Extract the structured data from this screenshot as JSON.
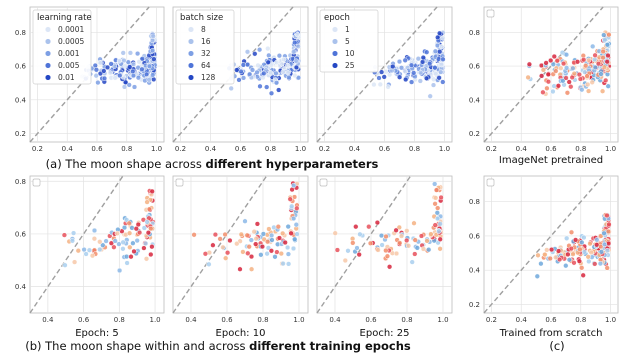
{
  "colors": {
    "blues": [
      "#dce6f6",
      "#aac2ec",
      "#7d9fe4",
      "#4f74d8",
      "#2447c4"
    ],
    "warm": [
      "#d7263d",
      "#e8505b",
      "#f28e6b",
      "#f4b183",
      "#f7c8a8",
      "#6fa8dc",
      "#a9cfee",
      "#8cb8e8"
    ],
    "diagonal": "#a0a0a0",
    "grid": "#e2e2e2"
  },
  "chart_data": [
    {
      "id": "p1",
      "type": "scatter",
      "xlim": [
        0.15,
        1.05
      ],
      "ylim": [
        0.15,
        0.95
      ],
      "xticks": [
        "0.2",
        "0.4",
        "0.6",
        "0.8",
        "1.0"
      ],
      "yticks": [
        "0.2",
        "0.4",
        "0.6",
        "0.8"
      ],
      "legend": {
        "title": "learning rate",
        "entries": [
          "0.0001",
          "0.0005",
          "0.001",
          "0.005",
          "0.01"
        ],
        "position": "top-left"
      }
    },
    {
      "id": "p2",
      "type": "scatter",
      "xlim": [
        0.15,
        1.05
      ],
      "ylim": [
        0.15,
        0.95
      ],
      "xticks": [
        "0.2",
        "0.4",
        "0.6",
        "0.8",
        "1.0"
      ],
      "yticks": [],
      "legend": {
        "title": "batch size",
        "entries": [
          "8",
          "16",
          "32",
          "64",
          "128"
        ],
        "position": "top-left"
      }
    },
    {
      "id": "p3",
      "type": "scatter",
      "xlim": [
        0.15,
        1.05
      ],
      "ylim": [
        0.15,
        0.95
      ],
      "xticks": [
        "0.2",
        "0.4",
        "0.6",
        "0.8",
        "1.0"
      ],
      "yticks": [],
      "legend": {
        "title": "epoch",
        "entries": [
          "1",
          "5",
          "10",
          "25"
        ],
        "position": "top-left"
      }
    },
    {
      "id": "p4",
      "type": "scatter",
      "xlim": [
        0.15,
        1.05
      ],
      "ylim": [
        0.15,
        0.95
      ],
      "xticks": [
        "0.2",
        "0.4",
        "0.6",
        "0.8",
        "1.0"
      ],
      "yticks": [
        "0.2",
        "0.4",
        "0.6",
        "0.8"
      ],
      "xlabel": "ImageNet pretrained"
    },
    {
      "id": "p5",
      "type": "scatter",
      "xlim": [
        0.3,
        1.05
      ],
      "ylim": [
        0.3,
        0.82
      ],
      "xticks": [
        "0.4",
        "0.6",
        "0.8",
        "1.0"
      ],
      "yticks": [
        "0.4",
        "0.6",
        "0.8"
      ],
      "xlabel": "Epoch: 5"
    },
    {
      "id": "p6",
      "type": "scatter",
      "xlim": [
        0.3,
        1.05
      ],
      "ylim": [
        0.3,
        0.82
      ],
      "xticks": [
        "0.4",
        "0.6",
        "0.8",
        "1.0"
      ],
      "yticks": [],
      "xlabel": "Epoch: 10"
    },
    {
      "id": "p7",
      "type": "scatter",
      "xlim": [
        0.3,
        1.05
      ],
      "ylim": [
        0.3,
        0.82
      ],
      "xticks": [
        "0.4",
        "0.6",
        "0.8",
        "1.0"
      ],
      "yticks": [],
      "xlabel": "Epoch: 25"
    },
    {
      "id": "p8",
      "type": "scatter",
      "xlim": [
        0.15,
        1.05
      ],
      "ylim": [
        0.15,
        0.95
      ],
      "xticks": [
        "0.2",
        "0.4",
        "0.6",
        "0.8",
        "1.0"
      ],
      "yticks": [
        "0.2",
        "0.4",
        "0.6",
        "0.8"
      ],
      "xlabel": "Trained from scratch"
    }
  ],
  "captions": {
    "a": {
      "text": "(a) The moon shape across ",
      "bold": "different hyperparameters"
    },
    "b": {
      "text": "(b) The moon shape within and across ",
      "bold": "different training epochs"
    },
    "c": {
      "text": "(c)"
    }
  }
}
